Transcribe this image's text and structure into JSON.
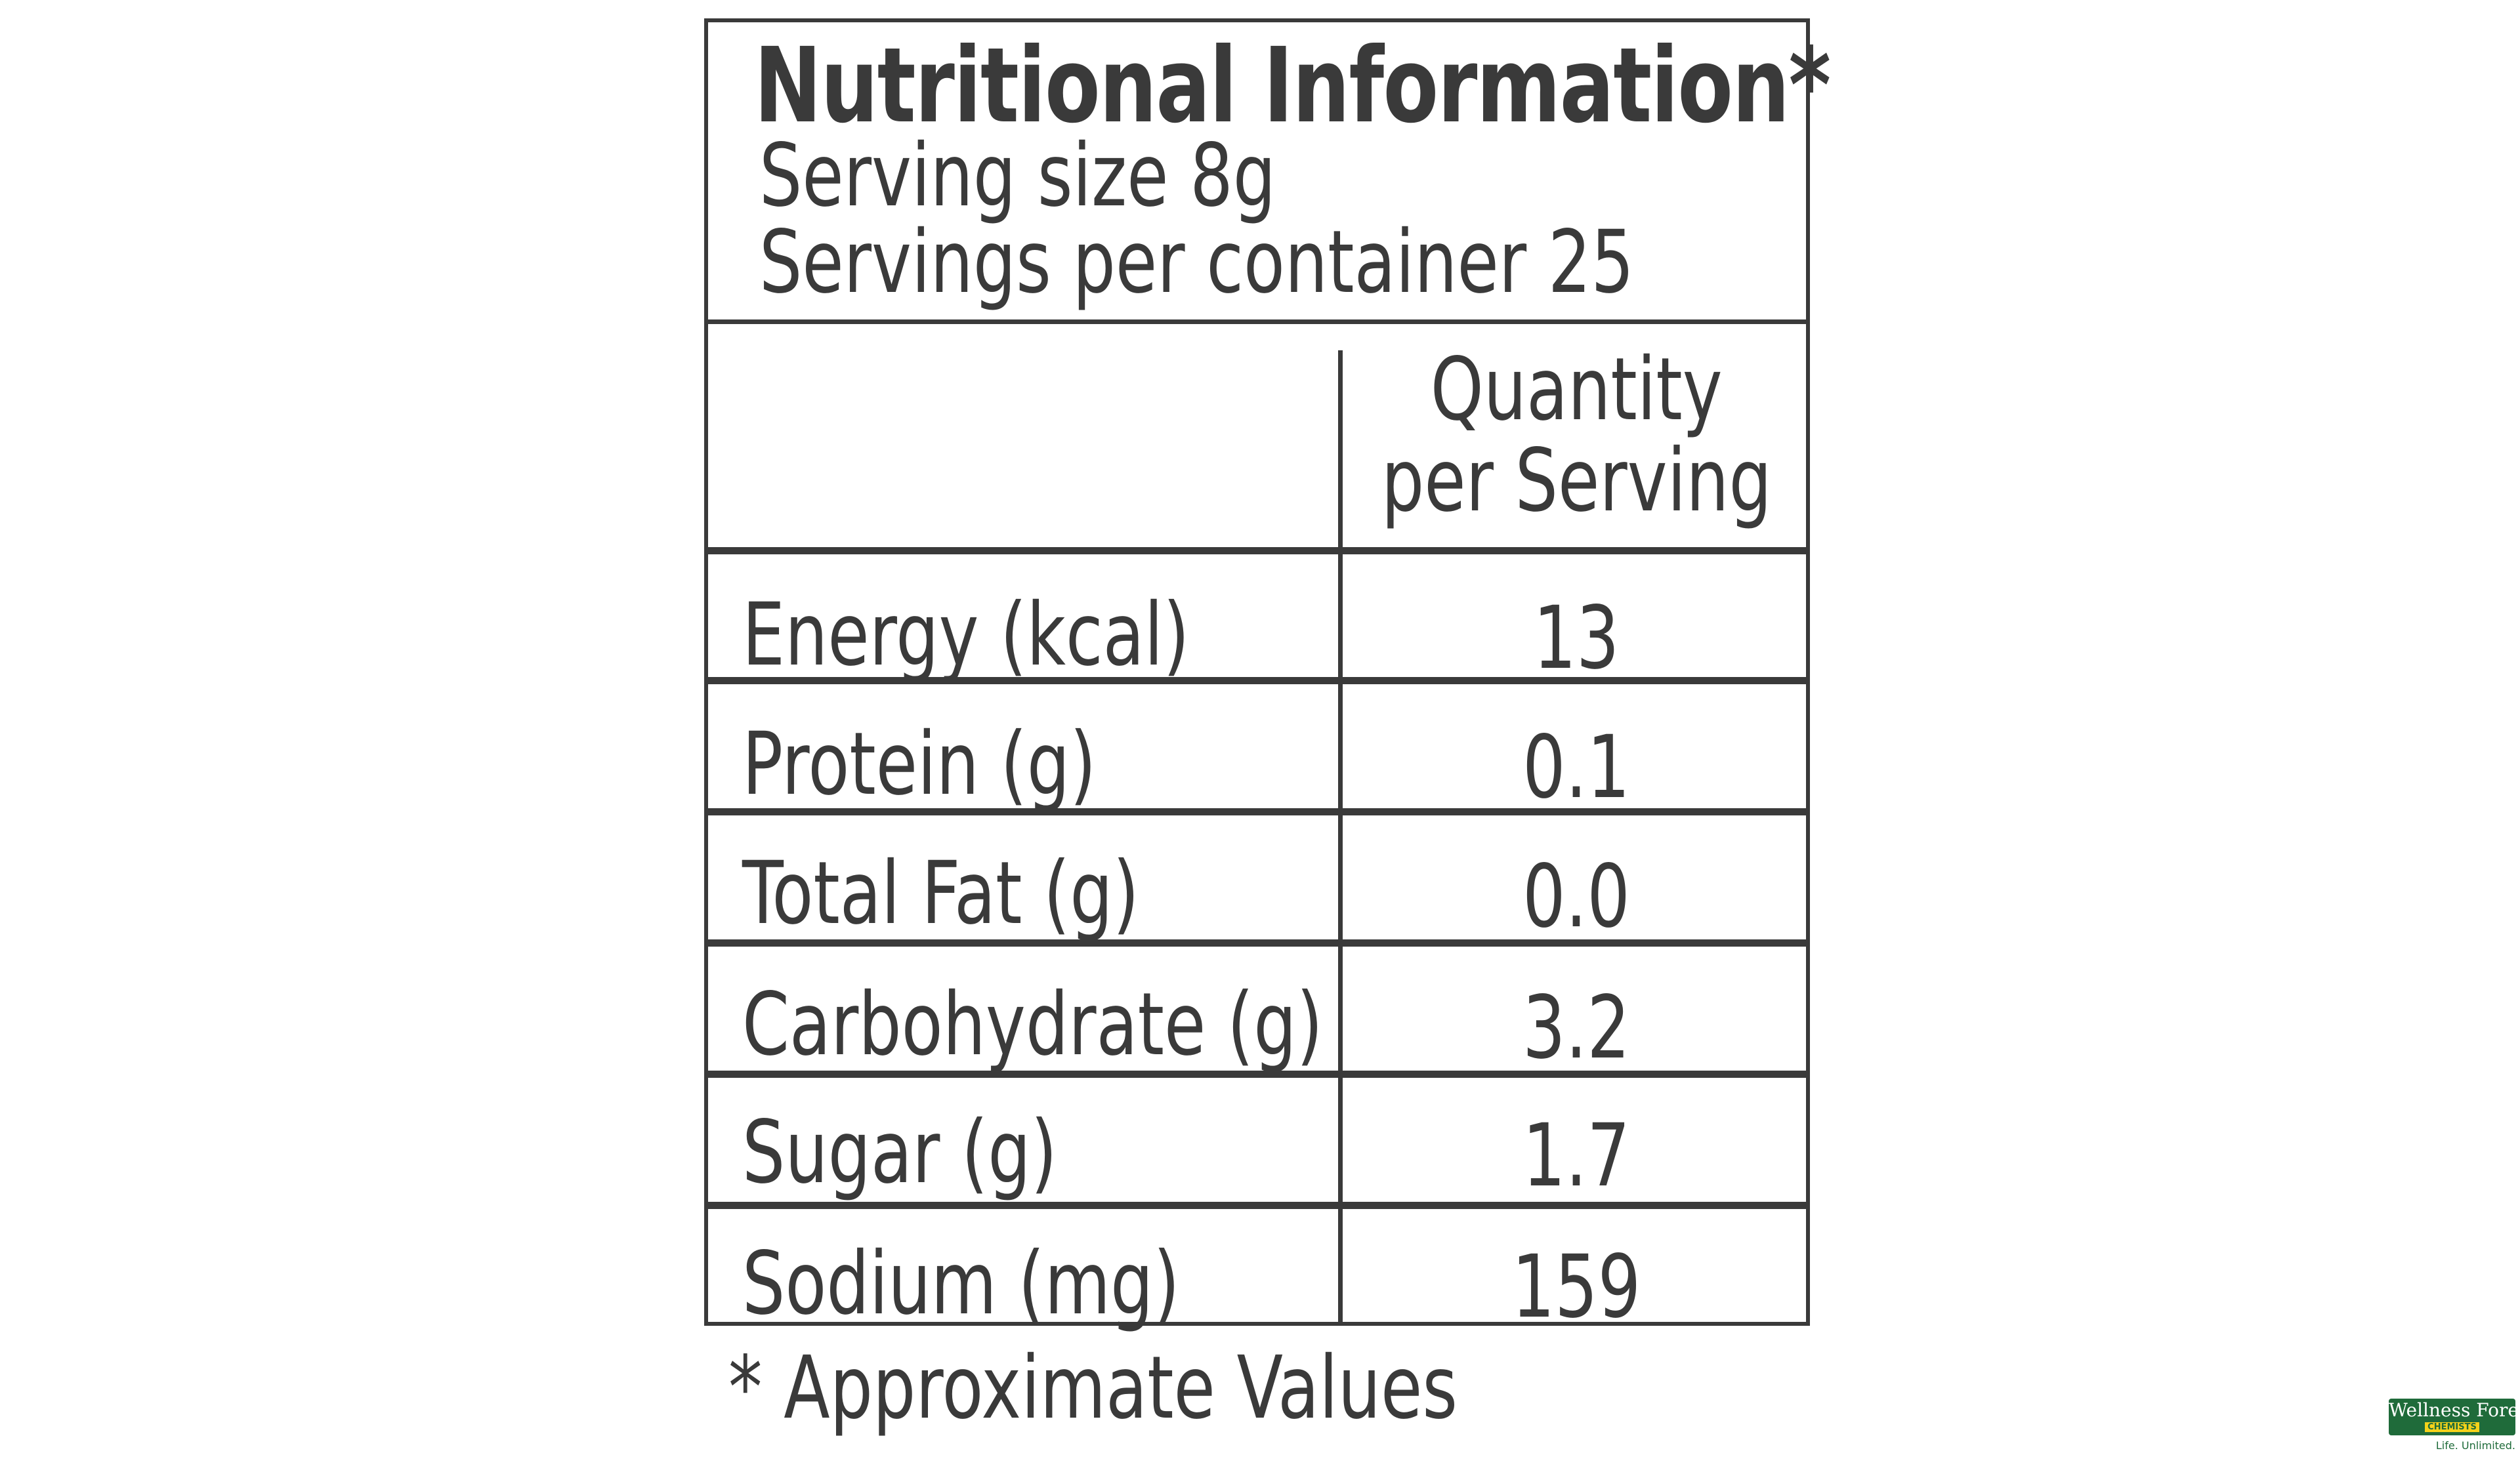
{
  "label": {
    "title": "Nutritional Information*",
    "serving_size": "Serving size 8g",
    "servings_per_container": "Servings per container 25",
    "column_header": {
      "line1": "Quantity",
      "line2": "per Serving"
    },
    "rows": [
      {
        "nutrient": "Energy (kcal)",
        "value": "13"
      },
      {
        "nutrient": "Protein (g)",
        "value": "0.1"
      },
      {
        "nutrient": "Total Fat (g)",
        "value": "0.0"
      },
      {
        "nutrient": "Carbohydrate (g)",
        "value": "3.2"
      },
      {
        "nutrient": "Sugar (g)",
        "value": "1.7"
      },
      {
        "nutrient": "Sodium (mg)",
        "value": "159"
      }
    ],
    "footnote": "*  Approximate Values"
  },
  "watermark": {
    "name": "Wellness Forever",
    "sub": "CHEMISTS",
    "tagline": "Life. Unlimited.",
    "brand_color": "#1f6b3a",
    "accent_color": "#f5d21a"
  }
}
